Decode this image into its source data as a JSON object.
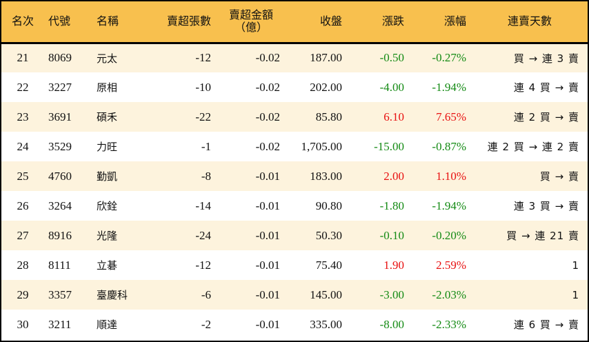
{
  "header": {
    "rank": "名次",
    "code": "代號",
    "name": "名稱",
    "net_sell_lots": "賣超張數",
    "net_sell_amount_line1": "賣超金額",
    "net_sell_amount_line2": "（億）",
    "close": "收盤",
    "change": "漲跌",
    "change_pct": "漲幅",
    "streak_days": "連賣天數"
  },
  "colors": {
    "header_bg": "#f8c04e",
    "row_alt_bg": "#fdf3dd",
    "up": "#e81010",
    "down": "#138a13"
  },
  "rows": [
    {
      "rank": "21",
      "code": "8069",
      "name": "元太",
      "lots": "-12",
      "amount": "-0.02",
      "close": "187.00",
      "change": "-0.50",
      "pct": "-0.27%",
      "dir": "down",
      "streak": "買 → 連 3 賣"
    },
    {
      "rank": "22",
      "code": "3227",
      "name": "原相",
      "lots": "-10",
      "amount": "-0.02",
      "close": "202.00",
      "change": "-4.00",
      "pct": "-1.94%",
      "dir": "down",
      "streak": "連 4 買 → 賣"
    },
    {
      "rank": "23",
      "code": "3691",
      "name": "碩禾",
      "lots": "-22",
      "amount": "-0.02",
      "close": "85.80",
      "change": "6.10",
      "pct": "7.65%",
      "dir": "up",
      "streak": "連 2 買 → 賣"
    },
    {
      "rank": "24",
      "code": "3529",
      "name": "力旺",
      "lots": "-1",
      "amount": "-0.02",
      "close": "1,705.00",
      "change": "-15.00",
      "pct": "-0.87%",
      "dir": "down",
      "streak": "連 2 買 → 連 2 賣"
    },
    {
      "rank": "25",
      "code": "4760",
      "name": "勤凱",
      "lots": "-8",
      "amount": "-0.01",
      "close": "183.00",
      "change": "2.00",
      "pct": "1.10%",
      "dir": "up",
      "streak": "買 → 賣"
    },
    {
      "rank": "26",
      "code": "3264",
      "name": "欣銓",
      "lots": "-14",
      "amount": "-0.01",
      "close": "90.80",
      "change": "-1.80",
      "pct": "-1.94%",
      "dir": "down",
      "streak": "連 3 買 → 賣"
    },
    {
      "rank": "27",
      "code": "8916",
      "name": "光隆",
      "lots": "-24",
      "amount": "-0.01",
      "close": "50.30",
      "change": "-0.10",
      "pct": "-0.20%",
      "dir": "down",
      "streak": "買 → 連 21 賣"
    },
    {
      "rank": "28",
      "code": "8111",
      "name": "立碁",
      "lots": "-12",
      "amount": "-0.01",
      "close": "75.40",
      "change": "1.90",
      "pct": "2.59%",
      "dir": "up",
      "streak": "1"
    },
    {
      "rank": "29",
      "code": "3357",
      "name": "臺慶科",
      "lots": "-6",
      "amount": "-0.01",
      "close": "145.00",
      "change": "-3.00",
      "pct": "-2.03%",
      "dir": "down",
      "streak": "1"
    },
    {
      "rank": "30",
      "code": "3211",
      "name": "順達",
      "lots": "-2",
      "amount": "-0.01",
      "close": "335.00",
      "change": "-8.00",
      "pct": "-2.33%",
      "dir": "down",
      "streak": "連 6 買 → 賣"
    }
  ]
}
